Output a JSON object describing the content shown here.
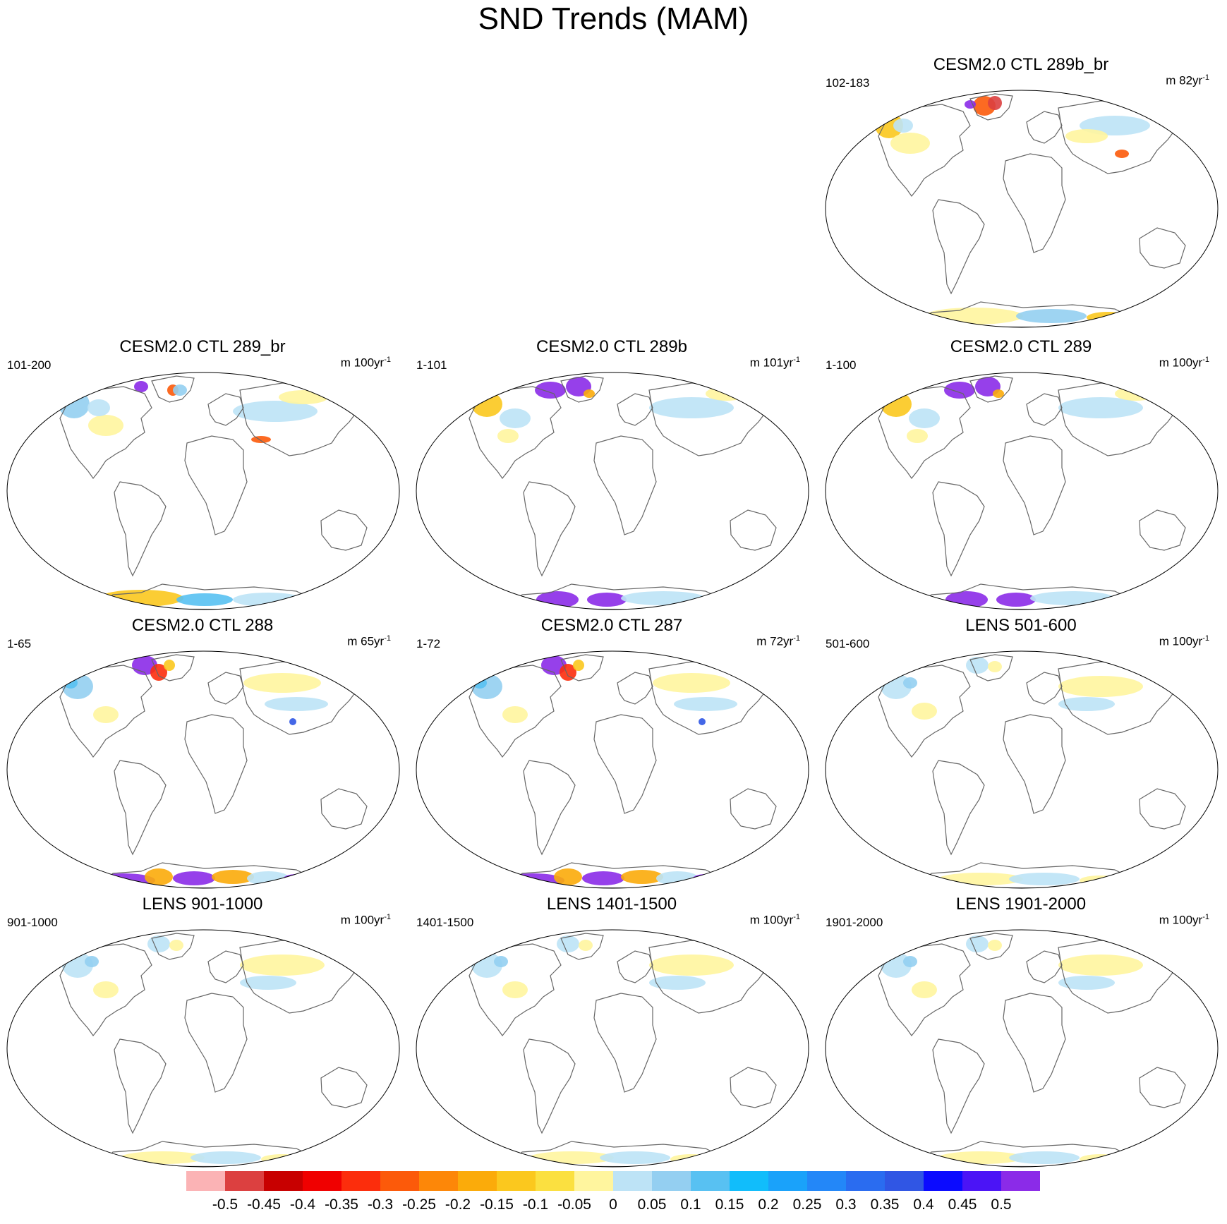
{
  "title": "SND Trends (MAM)",
  "panels": [
    {
      "title": "CESM2.0 CTL 289b_br",
      "period": "102-183",
      "units_prefix": "m 82yr",
      "units_exp": "-1",
      "pattern": "warm-greenland"
    },
    {
      "title": "CESM2.0 CTL 289_br",
      "period": "101-200",
      "units_prefix": "m 100yr",
      "units_exp": "-1",
      "pattern": "mixed"
    },
    {
      "title": "CESM2.0 CTL 289b",
      "period": "1-101",
      "units_prefix": "m 101yr",
      "units_exp": "-1",
      "pattern": "purple-greenland"
    },
    {
      "title": "CESM2.0 CTL 289",
      "period": "1-100",
      "units_prefix": "m 100yr",
      "units_exp": "-1",
      "pattern": "purple-greenland"
    },
    {
      "title": "CESM2.0 CTL 288",
      "period": "1-65",
      "units_prefix": "m 65yr",
      "units_exp": "-1",
      "pattern": "strong-antarctica"
    },
    {
      "title": "CESM2.0 CTL 287",
      "period": "1-72",
      "units_prefix": "m 72yr",
      "units_exp": "-1",
      "pattern": "strong-antarctica"
    },
    {
      "title": "LENS 501-600",
      "period": "501-600",
      "units_prefix": "m 100yr",
      "units_exp": "-1",
      "pattern": "weak"
    },
    {
      "title": "LENS 901-1000",
      "period": "901-1000",
      "units_prefix": "m 100yr",
      "units_exp": "-1",
      "pattern": "weak"
    },
    {
      "title": "LENS 1401-1500",
      "period": "1401-1500",
      "units_prefix": "m 100yr",
      "units_exp": "-1",
      "pattern": "weak"
    },
    {
      "title": "LENS 1901-2000",
      "period": "1901-2000",
      "units_prefix": "m 100yr",
      "units_exp": "-1",
      "pattern": "weak"
    }
  ],
  "colorbar": {
    "colors": [
      "#fbb3b5",
      "#dc4040",
      "#c80000",
      "#f00000",
      "#fc2d0c",
      "#fc5a0a",
      "#fd8708",
      "#fbab0a",
      "#fbc81e",
      "#fbe040",
      "#fff59e",
      "#bde3f6",
      "#94cff1",
      "#58c1f2",
      "#11bdfb",
      "#1aa2fa",
      "#2387f8",
      "#2a6cf0",
      "#3056e4",
      "#0b0bff",
      "#4b14f6",
      "#8b2be8"
    ],
    "labels": [
      "-0.5",
      "-0.45",
      "-0.4",
      "-0.35",
      "-0.3",
      "-0.25",
      "-0.2",
      "-0.15",
      "-0.1",
      "-0.05",
      "0",
      "0.05",
      "0.1",
      "0.15",
      "0.2",
      "0.25",
      "0.3",
      "0.35",
      "0.4",
      "0.45",
      "0.5"
    ]
  }
}
